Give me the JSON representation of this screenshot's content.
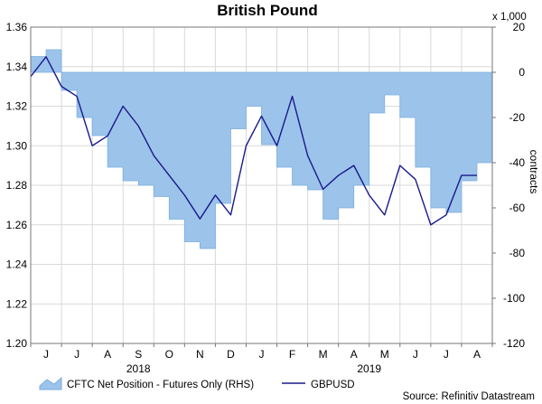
{
  "chart_data": {
    "type": "line",
    "title": "British Pound",
    "x_tick_labels": [
      "J",
      "J",
      "A",
      "S",
      "O",
      "N",
      "D",
      "J",
      "F",
      "M",
      "A",
      "M",
      "J",
      "J",
      "A"
    ],
    "year_labels": [
      "2018",
      "2019"
    ],
    "left_axis": {
      "ylim": [
        1.2,
        1.36
      ],
      "ticks": [
        "1.20",
        "1.22",
        "1.24",
        "1.26",
        "1.28",
        "1.30",
        "1.32",
        "1.34",
        "1.36"
      ]
    },
    "right_axis": {
      "ylim": [
        -120,
        20
      ],
      "ticks": [
        "20",
        "0",
        "-20",
        "-40",
        "-60",
        "-80",
        "-100",
        "-120"
      ],
      "unit_label": "x 1,000",
      "label": "contracts"
    },
    "legend": {
      "position": "bottom-left"
    },
    "source": "Source: Refinitiv Datastream",
    "colors": {
      "area_fill": "#9cc3ea",
      "area_edge": "#7aaedf",
      "line": "#1a1a8c"
    },
    "series": [
      {
        "name": "CFTC Net Position - Futures Only (RHS)",
        "type": "area",
        "axis": "right",
        "x": [
          0,
          0.5,
          1,
          1.5,
          2,
          2.5,
          3,
          3.5,
          4,
          4.5,
          5,
          5.5,
          6,
          6.5,
          7,
          7.5,
          8,
          8.5,
          9,
          9.5,
          10,
          10.5,
          11,
          11.5,
          12,
          12.5,
          13,
          13.5,
          14,
          14.5
        ],
        "values": [
          7,
          10,
          -8,
          -20,
          -28,
          -42,
          -48,
          -50,
          -55,
          -65,
          -75,
          -78,
          -58,
          -25,
          -15,
          -32,
          -42,
          -50,
          -52,
          -65,
          -60,
          -50,
          -18,
          -10,
          -20,
          -42,
          -60,
          -62,
          -48,
          -40
        ]
      },
      {
        "name": "GBPUSD",
        "type": "line",
        "axis": "left",
        "x": [
          0,
          0.5,
          1,
          1.5,
          2,
          2.5,
          3,
          3.5,
          4,
          4.5,
          5,
          5.5,
          6,
          6.5,
          7,
          7.5,
          8,
          8.5,
          9,
          9.5,
          10,
          10.5,
          11,
          11.5,
          12,
          12.5,
          13,
          13.5,
          14,
          14.5
        ],
        "values": [
          1.335,
          1.345,
          1.33,
          1.325,
          1.3,
          1.305,
          1.32,
          1.31,
          1.295,
          1.285,
          1.275,
          1.263,
          1.275,
          1.265,
          1.3,
          1.315,
          1.3,
          1.325,
          1.295,
          1.278,
          1.285,
          1.29,
          1.275,
          1.265,
          1.29,
          1.283,
          1.26,
          1.265,
          1.285,
          1.285
        ]
      }
    ]
  }
}
